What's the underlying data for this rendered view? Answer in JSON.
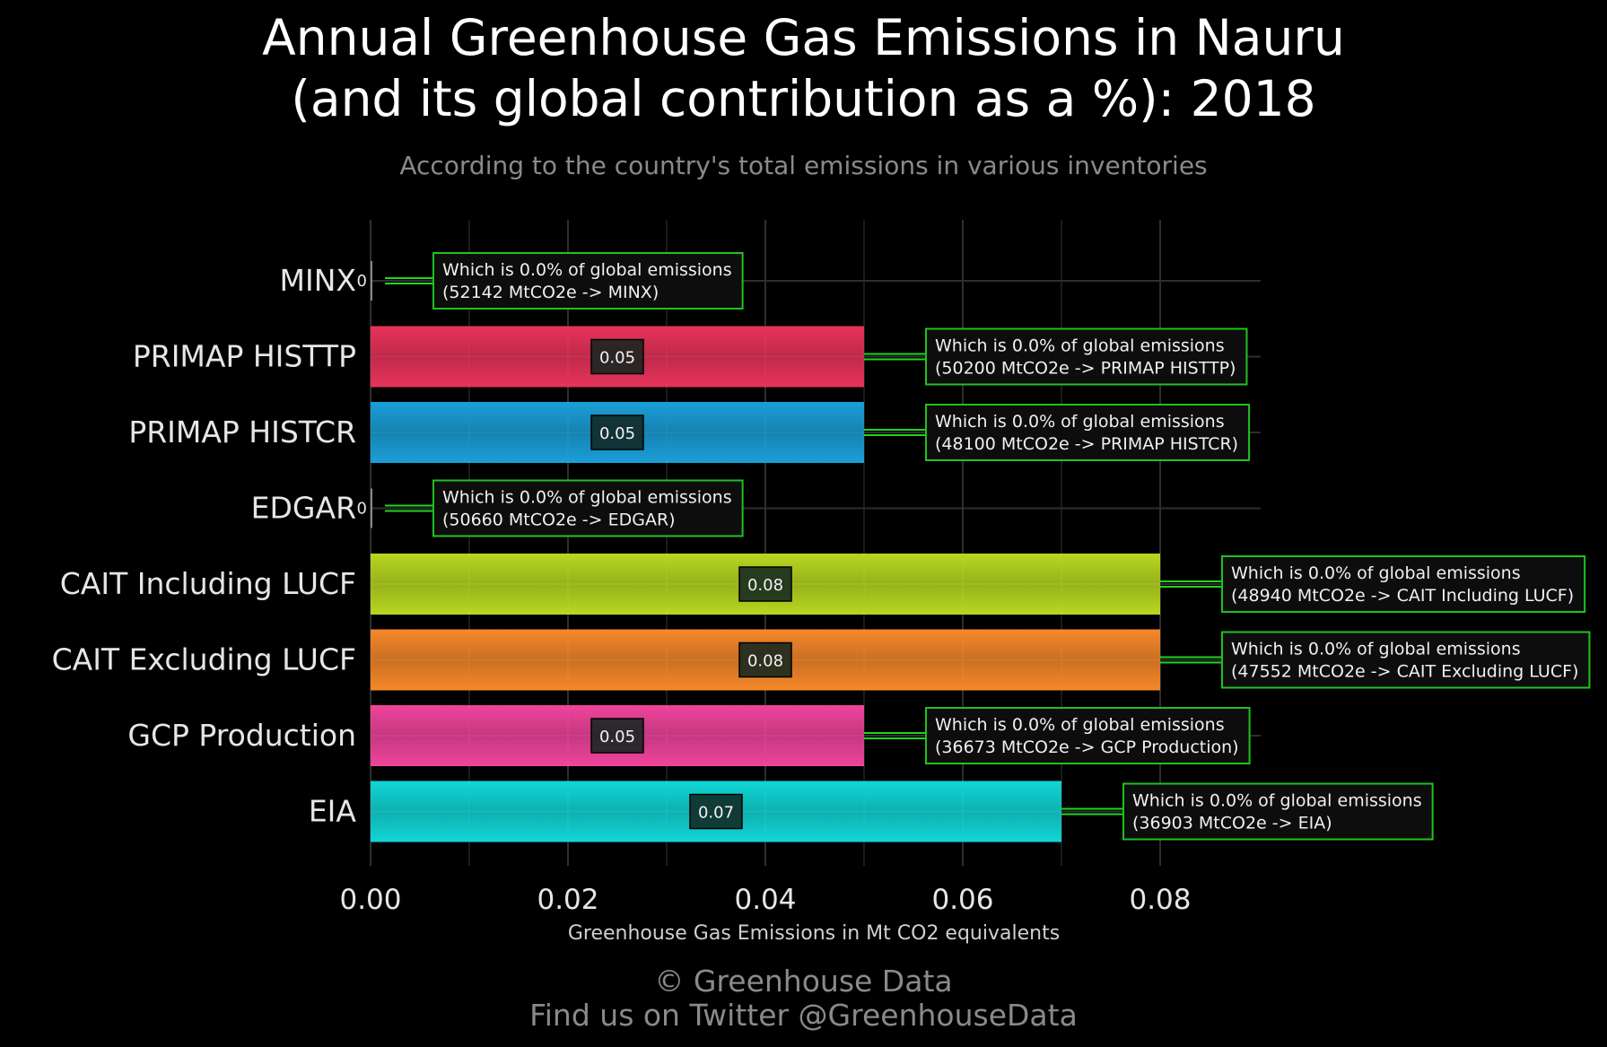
{
  "title_line1": "Annual Greenhouse Gas Emissions in Nauru",
  "title_line2": "(and its global contribution as a %): 2018",
  "subtitle": "According to the country's total emissions in various inventories",
  "credit_line1": "© Greenhouse Data",
  "credit_line2": "Find us on Twitter @GreenhouseData",
  "colors": {
    "background": "#000000",
    "grid": "#2e2e2e",
    "annotation_border": "#1fc21f",
    "connector": "#21d321",
    "annotation_fill": "#0d0d0d",
    "value_box_fill": "#10241e"
  },
  "chart_data": {
    "type": "bar",
    "orientation": "horizontal",
    "title": "Annual Greenhouse Gas Emissions in Nauru (and its global contribution as a %): 2018",
    "subtitle": "According to the country's total emissions in various inventories",
    "xlabel": "Greenhouse Gas Emissions in Mt CO2 equivalents",
    "ylabel": "",
    "xlim": [
      0,
      0.09
    ],
    "x_ticks": [
      "0.00",
      "0.02",
      "0.04",
      "0.06",
      "0.08"
    ],
    "x_tick_values": [
      0,
      0.02,
      0.04,
      0.06,
      0.08
    ],
    "grid": true,
    "categories": [
      "MINX",
      "PRIMAP HISTTP",
      "PRIMAP HISTCR",
      "EDGAR",
      "CAIT Including LUCF",
      "CAIT Excluding LUCF",
      "GCP Production",
      "EIA"
    ],
    "values": [
      0,
      0.05,
      0.05,
      0,
      0.08,
      0.08,
      0.05,
      0.07
    ],
    "value_labels": [
      "0",
      "0.05",
      "0.05",
      "0",
      "0.08",
      "0.08",
      "0.05",
      "0.07"
    ],
    "bar_colors": [
      "#888888",
      "#e8335a",
      "#1a9fd8",
      "#888888",
      "#b8d820",
      "#f6882a",
      "#f0449c",
      "#12d6d6"
    ],
    "annotations": [
      [
        "Which is 0.0% of global emissions",
        "(52142 MtCO2e -> MINX)"
      ],
      [
        "Which is 0.0% of global emissions",
        "(50200 MtCO2e -> PRIMAP HISTTP)"
      ],
      [
        "Which is 0.0% of global emissions",
        "(48100 MtCO2e -> PRIMAP HISTCR)"
      ],
      [
        "Which is 0.0% of global emissions",
        "(50660 MtCO2e -> EDGAR)"
      ],
      [
        "Which is 0.0% of global emissions",
        "(48940 MtCO2e -> CAIT Including LUCF)"
      ],
      [
        "Which is 0.0% of global emissions",
        "(47552 MtCO2e -> CAIT Excluding LUCF)"
      ],
      [
        "Which is 0.0% of global emissions",
        "(36673 MtCO2e -> GCP Production)"
      ],
      [
        "Which is 0.0% of global emissions",
        "(36903 MtCO2e -> EIA)"
      ]
    ]
  }
}
